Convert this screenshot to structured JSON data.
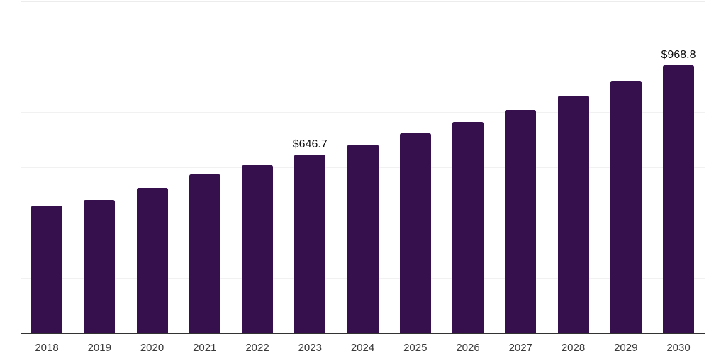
{
  "chart": {
    "background_color": "#ffffff",
    "bar_color": "#36104d",
    "axis_line_color": "#333333",
    "gridline_color": "#f1f1f1",
    "top_gridline_color": "#ececec",
    "tick_label_color": "#3a3a3a",
    "value_label_color": "#0d0d0d"
  },
  "chart_data": {
    "type": "bar",
    "title": "",
    "xlabel": "",
    "ylabel": "",
    "categories": [
      "2018",
      "2019",
      "2020",
      "2021",
      "2022",
      "2023",
      "2024",
      "2025",
      "2026",
      "2027",
      "2028",
      "2029",
      "2030"
    ],
    "values": [
      462.7,
      483.1,
      526.6,
      575.1,
      607.1,
      646.7,
      682.5,
      723.4,
      764.3,
      807.7,
      858.9,
      912.5,
      968.8
    ],
    "data_labels": {
      "2023": "$646.7",
      "2030": "$968.8"
    },
    "ylim": [
      0,
      1200
    ],
    "grid_interval": 200,
    "grid": "horizontal",
    "y_axis_labels_visible": false,
    "legend_position": "none"
  }
}
